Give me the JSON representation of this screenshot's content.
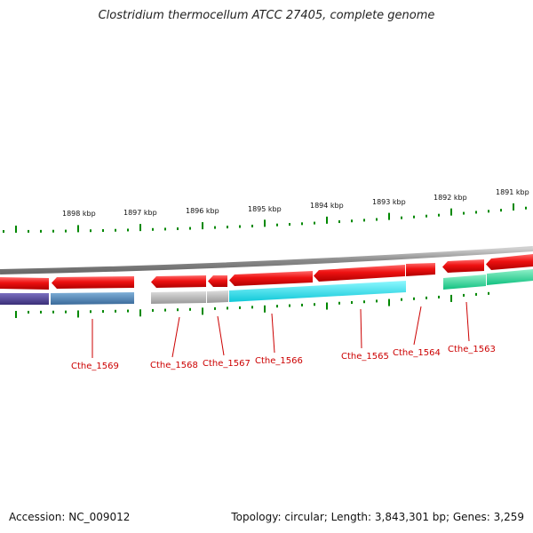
{
  "title": "Clostridium thermocellum ATCC 27405, complete genome",
  "accession": "Accession: NC_009012",
  "summary": "Topology: circular; Length: 3,843,301 bp; Genes: 3,259",
  "kbp_labels": [
    "1898 kbp",
    "1897 kbp",
    "1896 kbp",
    "1895 kbp",
    "1894 kbp",
    "1893 kbp",
    "1892 kbp",
    "1891 kbp"
  ],
  "gene_labels": [
    "Cthe_1569",
    "Cthe_1568",
    "Cthe_1567",
    "Cthe_1566",
    "Cthe_1565",
    "Cthe_1564",
    "Cthe_1563"
  ],
  "colors": {
    "backbone": "#8a8a8a",
    "cds_red": "#ee1111",
    "tick_green": "#008800",
    "label_red": "#cc0000",
    "purple": "#4a3f8c",
    "steel_blue": "#4a7fb0",
    "gray": "#b0b0b0",
    "cyan": "#1ee8f0",
    "teal": "#2ee0a0"
  }
}
